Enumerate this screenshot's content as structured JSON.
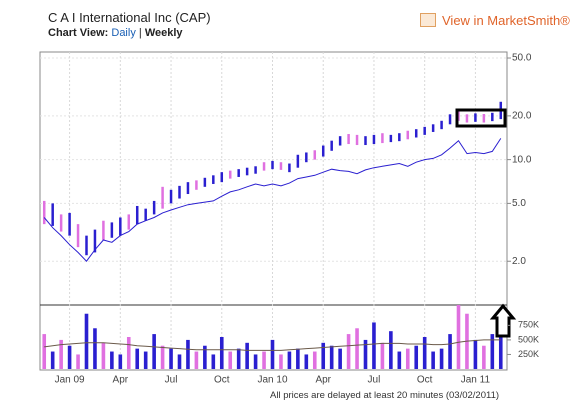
{
  "header": {
    "title": "C A I International Inc (CAP)",
    "chart_view_label": "Chart View:",
    "daily": "Daily",
    "separator": "|",
    "weekly": "Weekly",
    "link": "View in MarketSmith®"
  },
  "footer": {
    "text": "All prices are delayed at least 20 minutes (03/02/2011)"
  },
  "chart_data": {
    "type": "ohlc",
    "categories": [
      null,
      null,
      null,
      "Jan 09",
      null,
      null,
      null,
      null,
      null,
      "Apr",
      null,
      null,
      null,
      null,
      null,
      "Jul",
      null,
      null,
      null,
      null,
      null,
      "Oct",
      null,
      null,
      null,
      null,
      null,
      "Jan 10",
      null,
      null,
      null,
      null,
      null,
      "Apr",
      null,
      null,
      null,
      null,
      null,
      "Jul",
      null,
      null,
      null,
      null,
      null,
      "Oct",
      null,
      null,
      null,
      null,
      null,
      "Jan 11",
      null,
      null,
      null
    ],
    "log_scale": true,
    "grid": true,
    "ylim": [
      1,
      55
    ],
    "yticks": [
      {
        "value": 50,
        "label": "50.0"
      },
      {
        "value": 20,
        "label": "20.0"
      },
      {
        "value": 10,
        "label": "10.0"
      },
      {
        "value": 5,
        "label": "5.0"
      },
      {
        "value": 2,
        "label": "2.0"
      }
    ],
    "price": {
      "high": [
        5.2,
        5.0,
        4.2,
        4.3,
        3.6,
        3.0,
        3.3,
        3.8,
        3.7,
        4.0,
        4.2,
        4.8,
        4.6,
        5.2,
        6.5,
        6.2,
        6.6,
        7.0,
        7.2,
        7.5,
        7.8,
        8.2,
        8.4,
        8.6,
        8.8,
        9.0,
        9.6,
        9.8,
        9.6,
        9.4,
        10.8,
        11.2,
        11.6,
        12.5,
        13.5,
        14.5,
        15.0,
        14.8,
        14.5,
        14.8,
        15.2,
        14.8,
        15.2,
        15.8,
        16.2,
        16.8,
        17.5,
        18.5,
        20.5,
        21.5,
        20.5,
        20.8,
        20.6,
        21.0,
        25.0
      ],
      "low": [
        3.6,
        3.5,
        3.2,
        3.0,
        2.5,
        2.2,
        2.3,
        2.8,
        2.9,
        3.0,
        3.3,
        3.6,
        3.8,
        4.2,
        4.6,
        5.0,
        5.4,
        5.8,
        6.2,
        6.5,
        6.8,
        7.0,
        7.4,
        7.6,
        7.8,
        8.0,
        8.4,
        8.6,
        8.5,
        8.2,
        8.8,
        9.6,
        10.0,
        10.5,
        11.5,
        12.5,
        12.8,
        12.6,
        12.6,
        12.8,
        13.0,
        13.2,
        13.4,
        13.8,
        14.2,
        14.8,
        15.5,
        16.2,
        17.5,
        18.5,
        18.0,
        18.2,
        18.0,
        18.4,
        19.0
      ],
      "colors": [
        "#e070e0",
        "#2a1fd0",
        "#e070e0",
        "#2a1fd0",
        "#e070e0",
        "#2a1fd0",
        "#2a1fd0",
        "#e070e0",
        "#2a1fd0",
        "#2a1fd0",
        "#e070e0",
        "#2a1fd0",
        "#2a1fd0",
        "#2a1fd0",
        "#e070e0",
        "#2a1fd0",
        "#2a1fd0",
        "#2a1fd0",
        "#e070e0",
        "#2a1fd0",
        "#2a1fd0",
        "#2a1fd0",
        "#e070e0",
        "#2a1fd0",
        "#2a1fd0",
        "#2a1fd0",
        "#e070e0",
        "#2a1fd0",
        "#e070e0",
        "#2a1fd0",
        "#2a1fd0",
        "#2a1fd0",
        "#e070e0",
        "#2a1fd0",
        "#2a1fd0",
        "#2a1fd0",
        "#e070e0",
        "#e070e0",
        "#2a1fd0",
        "#2a1fd0",
        "#e070e0",
        "#2a1fd0",
        "#2a1fd0",
        "#e070e0",
        "#2a1fd0",
        "#2a1fd0",
        "#2a1fd0",
        "#2a1fd0",
        "#2a1fd0",
        "#e070e0",
        "#e070e0",
        "#2a1fd0",
        "#e070e0",
        "#2a1fd0",
        "#2a1fd0"
      ]
    },
    "rs_line": {
      "color": "#2a1fd0",
      "values": [
        4.0,
        3.4,
        3.0,
        2.6,
        2.3,
        2.0,
        2.4,
        2.8,
        2.7,
        3.0,
        3.2,
        3.6,
        3.8,
        4.0,
        4.3,
        4.5,
        4.7,
        4.9,
        5.0,
        5.1,
        5.2,
        5.6,
        6.0,
        6.2,
        6.5,
        6.8,
        6.6,
        6.8,
        6.6,
        6.9,
        7.4,
        7.6,
        7.8,
        8.2,
        8.6,
        8.4,
        8.3,
        8.0,
        8.5,
        8.8,
        9.0,
        9.2,
        9.4,
        9.0,
        9.6,
        10.0,
        10.2,
        10.8,
        12.0,
        13.5,
        11.0,
        11.2,
        11.0,
        11.4,
        14.0
      ]
    },
    "volume": {
      "ylim": [
        0,
        1100000
      ],
      "yticks": [
        {
          "value": 750000,
          "label": "750K"
        },
        {
          "value": 500000,
          "label": "500K"
        },
        {
          "value": 250000,
          "label": "250K"
        }
      ],
      "values": [
        600000,
        300000,
        500000,
        400000,
        250000,
        950000,
        700000,
        450000,
        300000,
        250000,
        550000,
        350000,
        300000,
        600000,
        400000,
        350000,
        250000,
        500000,
        300000,
        400000,
        250000,
        550000,
        300000,
        350000,
        450000,
        250000,
        300000,
        500000,
        250000,
        300000,
        350000,
        250000,
        300000,
        450000,
        400000,
        350000,
        600000,
        700000,
        500000,
        800000,
        450000,
        650000,
        300000,
        350000,
        400000,
        550000,
        300000,
        350000,
        600000,
        1100000,
        950000,
        500000,
        400000,
        600000,
        550000
      ],
      "average": {
        "color": "#6b5a4a",
        "values": [
          380000,
          400000,
          420000,
          430000,
          440000,
          450000,
          450000,
          450000,
          440000,
          430000,
          420000,
          400000,
          390000,
          380000,
          370000,
          360000,
          350000,
          340000,
          330000,
          330000,
          330000,
          330000,
          330000,
          330000,
          320000,
          320000,
          320000,
          320000,
          320000,
          330000,
          340000,
          350000,
          360000,
          370000,
          380000,
          390000,
          400000,
          410000,
          420000,
          430000,
          440000,
          440000,
          440000,
          430000,
          430000,
          430000,
          420000,
          420000,
          430000,
          460000,
          480000,
          490000,
          500000,
          500000,
          500000
        ]
      }
    }
  }
}
